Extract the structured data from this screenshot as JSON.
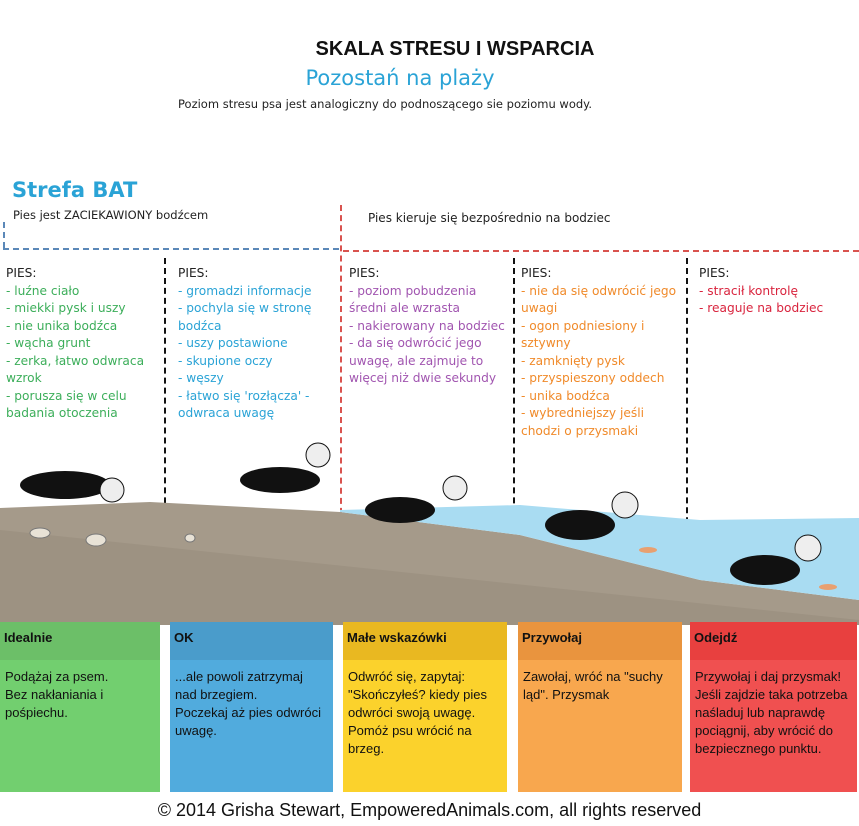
{
  "header": {
    "title": "SKALA STRESU I WSPARCIA",
    "subtitle": "Pozostań na plaży",
    "intro": "Poziom stresu psa jest analogiczny do podnoszącego sie poziomu wody."
  },
  "zones": {
    "bat_title": "Strefa BAT",
    "bat_desc": "Pies jest ZACIEKAWIONY bodźcem",
    "direct_desc": "Pies kieruje się bezpośrednio na bodziec"
  },
  "columns": [
    {
      "heading": "PIES:",
      "color": "#3cae5a",
      "items": [
        "- luźne ciało",
        "- miekki pysk i uszy",
        "- nie unika bodźca",
        "- wącha grunt",
        "- zerka, łatwo odwraca wzrok",
        "- porusza się w celu badania   otoczenia"
      ],
      "box_title": "Idealnie",
      "box_text": [
        "Podążaj za psem.",
        "Bez nakłaniania i pośpiechu."
      ],
      "box_color": "#72cf6f",
      "box_header_color": "#6cbf68"
    },
    {
      "heading": "PIES:",
      "color": "#2aa3d6",
      "items": [
        "- gromadzi informacje",
        "- pochyla się w stronę bodźca",
        "- uszy postawione",
        "- skupione oczy",
        "- węszy",
        "- łatwo się 'rozłącza' - odwraca uwagę"
      ],
      "box_title": "OK",
      "box_text": [
        "...ale powoli zatrzymaj nad brzegiem.",
        "Poczekaj aż pies odwróci uwagę."
      ],
      "box_color": "#51abdd",
      "box_header_color": "#4a9ccb"
    },
    {
      "heading": "PIES:",
      "color": "#a155b0",
      "items": [
        "- poziom pobudzenia średni ale wzrasta",
        "- nakierowany na bodziec",
        "- da się odwrócić jego uwagę, ale zajmuje to więcej niż dwie sekundy"
      ],
      "box_title": "Małe wskazówki",
      "box_text": [
        "Odwróć się, zapytaj: \"Skończyłeś? kiedy pies odwróci swoją uwagę.",
        "Pomóż psu wrócić na brzeg."
      ],
      "box_color": "#fbd22c",
      "box_header_color": "#e9b821"
    },
    {
      "heading": "PIES:",
      "color": "#f08a2a",
      "items": [
        "- nie da się odwrócić jego uwagi",
        "- ogon podniesiony i sztywny",
        "- zamknięty pysk",
        "- przyspieszony oddech",
        "- unika bodźca",
        "- wybredniejszy jeśli chodzi o przysmaki"
      ],
      "box_title": "Przywołaj",
      "box_text": [
        "Zawołaj, wróć na \"suchy ląd\". Przysmak"
      ],
      "box_color": "#f8a74e",
      "box_header_color": "#e9943e"
    },
    {
      "heading": "PIES:",
      "color": "#d9243e",
      "items": [
        "- stracił kontrolę",
        "- reaguje na bodziec"
      ],
      "box_title": "Odejdź",
      "box_text": [
        "Przywołaj i daj przysmak! Jeśli zajdzie taka potrzeba naśladuj lub naprawdę pociągnij, aby wrócić do bezpiecznego punktu."
      ],
      "box_color": "#f05050",
      "box_header_color": "#e8403f"
    }
  ],
  "footer": "© 2014 Grisha Stewart, EmpoweredAnimals.com, all rights reserved"
}
